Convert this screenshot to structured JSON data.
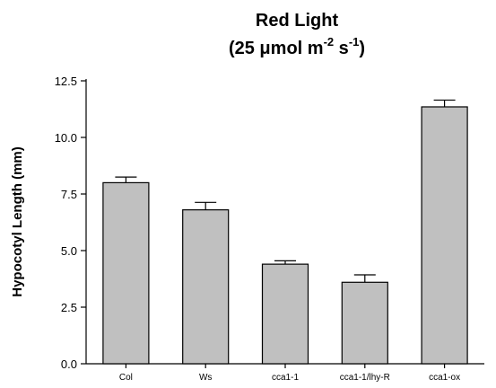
{
  "chart_data": {
    "type": "bar",
    "title_line1": "Red Light",
    "title_line2_prefix": "(25 ",
    "title_mu": "μ",
    "title_unit_mol": "mol m",
    "title_exp1": "-2",
    "title_unit_s": " s",
    "title_exp2": "-1",
    "title_suffix": ")",
    "xlabel": "",
    "ylabel": "Hypocotyl Length (mm)",
    "categories": [
      "Col",
      "Ws",
      "cca1-1",
      "cca1-1/lhy-R",
      "cca1-ox"
    ],
    "values": [
      8.0,
      6.8,
      4.4,
      3.6,
      11.35
    ],
    "errors": [
      0.25,
      0.33,
      0.15,
      0.33,
      0.3
    ],
    "ylim": [
      0,
      12.5
    ],
    "yticks": [
      "0.0",
      "2.5",
      "5.0",
      "7.5",
      "10.0",
      "12.5"
    ],
    "grid": false,
    "bar_color": "#c0c0c0",
    "edge_color": "#000000"
  }
}
